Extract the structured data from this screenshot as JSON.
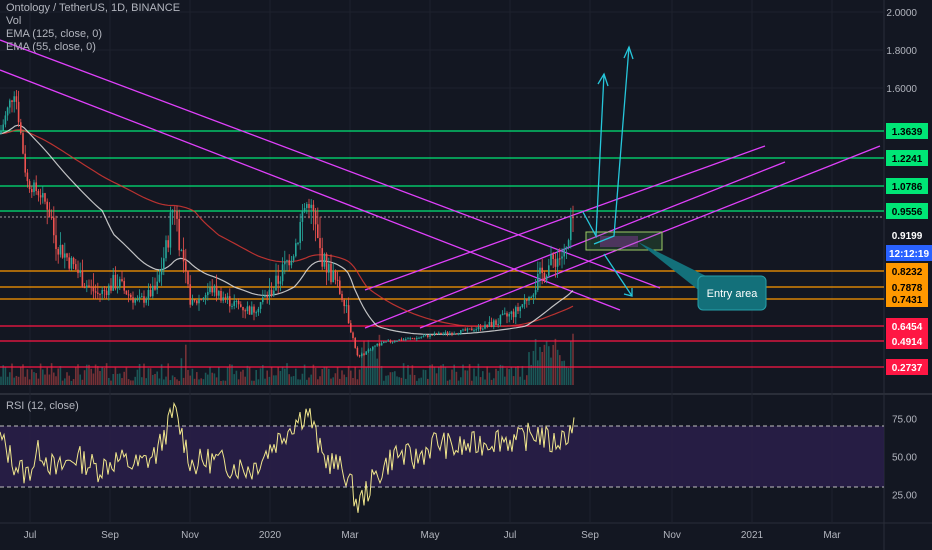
{
  "legend": {
    "symbol": "Ontology / TetherUS, 1D, BINANCE",
    "vol": "Vol",
    "ema125": "EMA (125, close, 0)",
    "ema55": "EMA (55, close, 0)"
  },
  "rsi_legend": "RSI (12, close)",
  "colors": {
    "background": "#131722",
    "green_level": "#00e676",
    "red_level": "#ff1744",
    "orange_level": "#ff9800",
    "channel": "#e040fb",
    "projection": "#26c6da",
    "rsi_line": "#f0e68c",
    "ema125": "#e53935",
    "ema55": "#e0e0e0"
  },
  "chart_data": {
    "type": "line",
    "title": "Ontology / TetherUS, 1D, BINANCE",
    "x_ticks": [
      "Jul",
      "Sep",
      "Nov",
      "2020",
      "Mar",
      "May",
      "Jul",
      "Sep",
      "Nov",
      "2021",
      "Mar"
    ],
    "y_ticks": [
      "2.0000",
      "1.8000",
      "1.6000"
    ],
    "levels": [
      {
        "value": 1.3639,
        "label": "1.3639",
        "kind": "green"
      },
      {
        "value": 1.2241,
        "label": "1.2241",
        "kind": "green"
      },
      {
        "value": 1.0786,
        "label": "1.0786",
        "kind": "green"
      },
      {
        "value": 0.9556,
        "label": "0.9556",
        "kind": "green"
      },
      {
        "value": 0.9199,
        "label": "0.9199",
        "kind": "price"
      },
      {
        "value": 0.8232,
        "label": "0.8232",
        "kind": "orange"
      },
      {
        "value": 0.7878,
        "label": "0.7878",
        "kind": "orange"
      },
      {
        "value": 0.7431,
        "label": "0.7431",
        "kind": "orange"
      },
      {
        "value": 0.6454,
        "label": "0.6454",
        "kind": "red"
      },
      {
        "value": 0.4914,
        "label": "0.4914",
        "kind": "red"
      },
      {
        "value": 0.2737,
        "label": "0.2737",
        "kind": "red"
      }
    ],
    "countdown": "12:12:19",
    "price_series": {
      "x": [
        "2019-06-20",
        "2019-07-01",
        "2019-07-10",
        "2019-07-20",
        "2019-08-01",
        "2019-08-15",
        "2019-09-01",
        "2019-09-15",
        "2019-10-01",
        "2019-10-15",
        "2019-10-28",
        "2019-11-10",
        "2019-11-25",
        "2019-12-10",
        "2019-12-25",
        "2020-01-10",
        "2020-01-25",
        "2020-02-05",
        "2020-02-15",
        "2020-02-25",
        "2020-03-05",
        "2020-03-13",
        "2020-03-25",
        "2020-04-10",
        "2020-04-25",
        "2020-05-10",
        "2020-05-25",
        "2020-06-10",
        "2020-06-25",
        "2020-07-10",
        "2020-07-25",
        "2020-08-05",
        "2020-08-15",
        "2020-08-22"
      ],
      "y": [
        1.35,
        1.6,
        1.1,
        1.04,
        0.9,
        0.83,
        0.76,
        0.8,
        0.73,
        0.78,
        0.98,
        0.72,
        0.78,
        0.73,
        0.7,
        0.78,
        0.88,
        1.0,
        0.86,
        0.8,
        0.72,
        0.35,
        0.45,
        0.5,
        0.52,
        0.56,
        0.58,
        0.62,
        0.66,
        0.7,
        0.8,
        0.85,
        0.87,
        0.96
      ]
    },
    "rsi": {
      "y_ticks": [
        "75.00",
        "50.00",
        "25.00"
      ],
      "upper": 70,
      "lower": 30,
      "values": [
        62,
        45,
        38,
        55,
        40,
        50,
        42,
        48,
        44,
        52,
        80,
        45,
        48,
        44,
        42,
        58,
        72,
        80,
        50,
        45,
        38,
        18,
        35,
        52,
        48,
        60,
        55,
        58,
        62,
        60,
        66,
        58,
        64,
        72
      ]
    },
    "annotations": [
      {
        "text": "Entry area"
      }
    ]
  }
}
